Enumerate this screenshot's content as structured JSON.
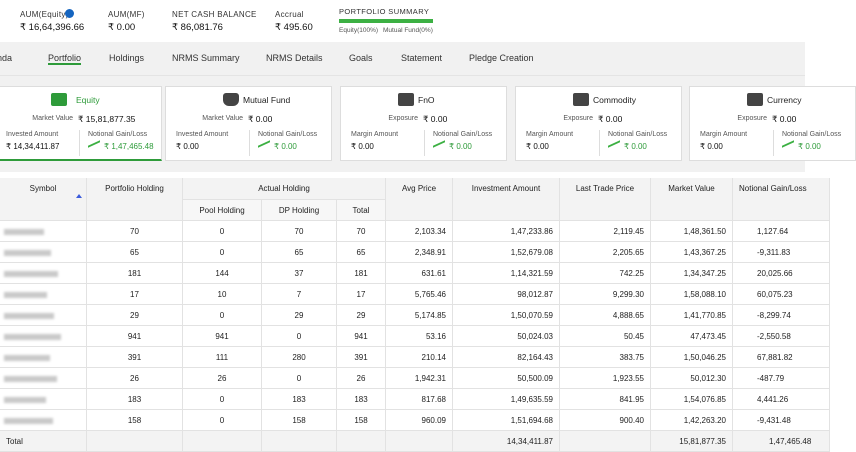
{
  "header": {
    "metrics": [
      {
        "label": "AUM(Equity)",
        "value": "₹ 16,64,396.66"
      },
      {
        "label": "AUM(MF)",
        "value": "₹ 0.00"
      },
      {
        "label": "NET CASH BALANCE",
        "value": "₹ 86,081.76"
      },
      {
        "label": "Accrual",
        "value": "₹ 495.60"
      }
    ],
    "summary": {
      "title": "PORTFOLIO SUMMARY",
      "equity": "Equity(100%)",
      "mutual_fund": "Mutual Fund(0%)"
    }
  },
  "tabs": [
    "enda",
    "Portfolio",
    "Holdings",
    "NRMS Summary",
    "NRMS Details",
    "Goals",
    "Statement",
    "Pledge Creation"
  ],
  "cards": [
    {
      "title": "Equity",
      "primary_label": "Market Value",
      "primary_value": "₹ 15,81,877.35",
      "left_label": "Invested Amount",
      "left_value": "₹ 14,34,411.87",
      "right_label": "Notional Gain/Loss",
      "right_value": "₹ 1,47,465.48"
    },
    {
      "title": "Mutual Fund",
      "primary_label": "Market Value",
      "primary_value": "₹ 0.00",
      "left_label": "Invested Amount",
      "left_value": "₹ 0.00",
      "right_label": "Notional Gain/Loss",
      "right_value": "₹ 0.00"
    },
    {
      "title": "FnO",
      "primary_label": "Exposure",
      "primary_value": "₹ 0.00",
      "left_label": "Margin Amount",
      "left_value": "₹ 0.00",
      "right_label": "Notional Gain/Loss",
      "right_value": "₹ 0.00"
    },
    {
      "title": "Commodity",
      "primary_label": "Exposure",
      "primary_value": "₹ 0.00",
      "left_label": "Margin Amount",
      "left_value": "₹ 0.00",
      "right_label": "Notional Gain/Loss",
      "right_value": "₹ 0.00"
    },
    {
      "title": "Currency",
      "primary_label": "Exposure",
      "primary_value": "₹ 0.00",
      "left_label": "Margin Amount",
      "left_value": "₹ 0.00",
      "right_label": "Notional Gain/Loss",
      "right_value": "₹ 0.00"
    }
  ],
  "table": {
    "headers": {
      "symbol": "Symbol",
      "portfolio_holding": "Portfolio Holding",
      "actual_holding": "Actual Holding",
      "pool_holding": "Pool Holding",
      "dp_holding": "DP Holding",
      "total": "Total",
      "avg_price": "Avg Price",
      "investment_amount": "Investment Amount",
      "last_trade_price": "Last Trade Price",
      "market_value": "Market Value",
      "notional_gain_loss": "Notional Gain/Loss"
    },
    "rows": [
      [
        "70",
        "0",
        "70",
        "70",
        "2,103.34",
        "1,47,233.86",
        "2,119.45",
        "1,48,361.50",
        "1,127.64"
      ],
      [
        "65",
        "0",
        "65",
        "65",
        "2,348.91",
        "1,52,679.08",
        "2,205.65",
        "1,43,367.25",
        "-9,311.83"
      ],
      [
        "181",
        "144",
        "37",
        "181",
        "631.61",
        "1,14,321.59",
        "742.25",
        "1,34,347.25",
        "20,025.66"
      ],
      [
        "17",
        "10",
        "7",
        "17",
        "5,765.46",
        "98,012.87",
        "9,299.30",
        "1,58,088.10",
        "60,075.23"
      ],
      [
        "29",
        "0",
        "29",
        "29",
        "5,174.85",
        "1,50,070.59",
        "4,888.65",
        "1,41,770.85",
        "-8,299.74"
      ],
      [
        "941",
        "941",
        "0",
        "941",
        "53.16",
        "50,024.03",
        "50.45",
        "47,473.45",
        "-2,550.58"
      ],
      [
        "391",
        "111",
        "280",
        "391",
        "210.14",
        "82,164.43",
        "383.75",
        "1,50,046.25",
        "67,881.82"
      ],
      [
        "26",
        "26",
        "0",
        "26",
        "1,942.31",
        "50,500.09",
        "1,923.55",
        "50,012.30",
        "-487.79"
      ],
      [
        "183",
        "0",
        "183",
        "183",
        "817.68",
        "1,49,635.59",
        "841.95",
        "1,54,076.85",
        "4,441.26"
      ],
      [
        "158",
        "0",
        "158",
        "158",
        "960.09",
        "1,51,694.68",
        "900.40",
        "1,42,263.20",
        "-9,431.48"
      ]
    ],
    "total_row": {
      "label": "Total",
      "investment_amount": "14,34,411.87",
      "market_value": "15,81,877.35",
      "notional_gain_loss": "1,47,465.48"
    }
  }
}
